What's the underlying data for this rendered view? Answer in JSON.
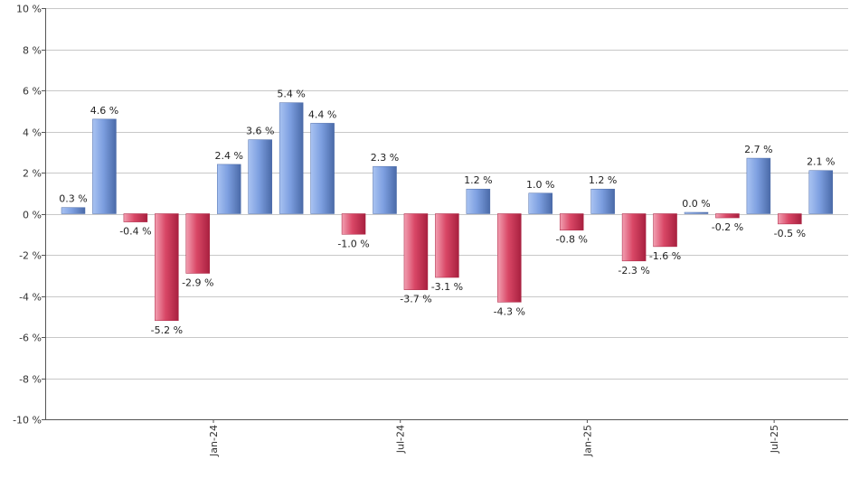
{
  "chart_data": {
    "type": "bar",
    "title": "",
    "xlabel": "",
    "ylabel": "",
    "ylim": [
      -10,
      10
    ],
    "yticks": [
      10,
      8,
      6,
      4,
      2,
      0,
      -2,
      -4,
      -6,
      -8,
      -10
    ],
    "ytick_labels": [
      "10 %",
      "8 %",
      "6 %",
      "4 %",
      "2 %",
      "0 %",
      "-2 %",
      "-4 %",
      "-6 %",
      "-8 %",
      "-10 %"
    ],
    "xtick_labels": [
      {
        "label": "Jan-24",
        "after_bar_index": 5
      },
      {
        "label": "Jul-24",
        "after_bar_index": 11
      },
      {
        "label": "Jan-25",
        "after_bar_index": 17
      },
      {
        "label": "Jul-25",
        "after_bar_index": 23
      }
    ],
    "values": [
      0.3,
      4.6,
      -0.4,
      -5.2,
      -2.9,
      2.4,
      3.6,
      5.4,
      4.4,
      -1.0,
      2.3,
      -3.7,
      -3.1,
      1.2,
      -4.3,
      1.0,
      -0.8,
      1.2,
      -2.3,
      -1.6,
      0.0,
      -0.2,
      2.7,
      -0.5,
      2.1
    ],
    "data_labels": [
      "0.3 %",
      "4.6 %",
      "-0.4 %",
      "-5.2 %",
      "-2.9 %",
      "2.4 %",
      "3.6 %",
      "5.4 %",
      "4.4 %",
      "-1.0 %",
      "2.3 %",
      "-3.7 %",
      "-3.1 %",
      "1.2 %",
      "-4.3 %",
      "1.0 %",
      "-0.8 %",
      "1.2 %",
      "-2.3 %",
      "-1.6 %",
      "0.0 %",
      "-0.2 %",
      "2.7 %",
      "-0.5 %",
      "2.1 %"
    ],
    "grid": true,
    "legend": "none",
    "colors": {
      "positive_light": "#a9c3f2",
      "positive_mid": "#7d9fe0",
      "positive_dark": "#4a6aa8",
      "negative_light": "#f2a0b2",
      "negative_mid": "#d94766",
      "negative_dark": "#a8203f",
      "gridline": "#c8c8c8",
      "axis": "#555555"
    }
  }
}
